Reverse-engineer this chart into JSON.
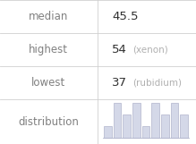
{
  "median": "45.5",
  "highest_val": "54",
  "highest_label": "xenon",
  "lowest_val": "37",
  "lowest_label": "rubidium",
  "bar_heights": [
    1,
    3,
    2,
    3,
    1,
    3,
    2,
    3,
    2
  ],
  "bar_color": "#d4d8e8",
  "bar_edge_color": "#b0b4cc",
  "grid_color": "#d0d0d0",
  "text_color_label": "#808080",
  "text_color_value": "#303030",
  "text_color_sublabel": "#b0b0b0",
  "bg_color": "#ffffff",
  "label_fontsize": 8.5,
  "value_fontsize": 9.5,
  "sublabel_fontsize": 7.5
}
